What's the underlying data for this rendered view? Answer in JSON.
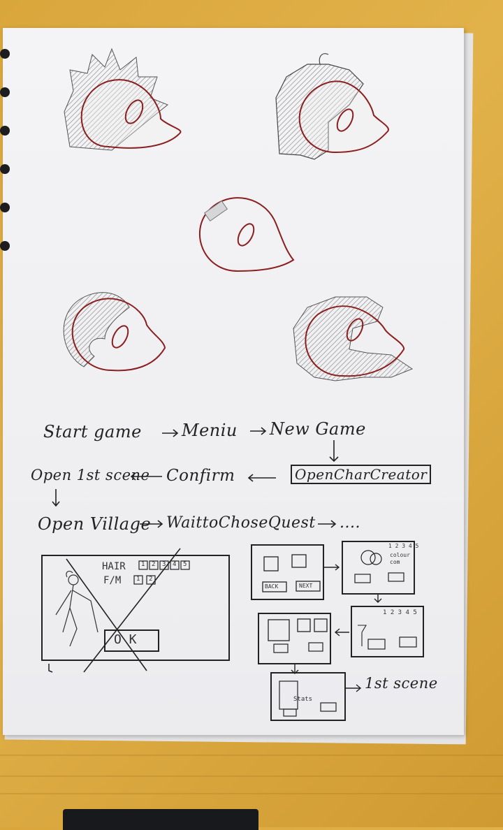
{
  "flowchart": {
    "row1": {
      "start": "Start game",
      "menu": "Meniu",
      "newgame": "New Game"
    },
    "row2": {
      "open_scene": "Open 1st scene",
      "confirm": "Confirm",
      "open_char": "OpenCharCreator"
    },
    "row3": {
      "village": "Open Village",
      "wait": "WaittoChoseQuest",
      "ellipsis": "...."
    }
  },
  "creator_sketch": {
    "hair_label": "HAIR",
    "hair_options": [
      "1",
      "2",
      "3",
      "4",
      "5"
    ],
    "gender_label": "F/M",
    "gender_options": [
      "1",
      "2"
    ],
    "ok_label": "O K"
  },
  "storyboard": {
    "panel1": {
      "back": "BACK",
      "next": "NEXT"
    },
    "panel2": {
      "numbers": "1 2 3 4 5",
      "line1": "colour",
      "line2": "com"
    },
    "panel4": {
      "numbers": "1 2 3 4 5"
    },
    "panel5": {
      "stats": "Stats"
    },
    "end_label": "1st scene"
  },
  "colors": {
    "ink": "#222222",
    "red_ink": "#8b1e1e",
    "shade": "#9a9a9a"
  }
}
